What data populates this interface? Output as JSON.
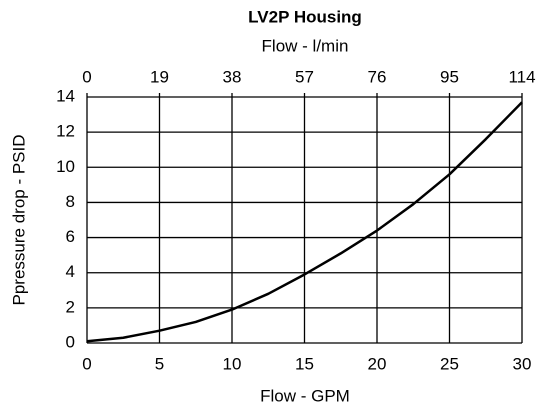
{
  "chart_data": {
    "type": "line",
    "title": "LV2P Housing",
    "x2label": "Flow - l/min",
    "xlabel": "Flow - GPM",
    "ylabel": "Ppressure drop - PSID",
    "x": [
      0,
      2.5,
      5,
      7.5,
      10,
      12.5,
      15,
      17.5,
      20,
      22.5,
      25,
      27.5,
      30
    ],
    "series": [
      {
        "color": "#000000",
        "values": [
          0.1,
          0.3,
          0.7,
          1.2,
          1.9,
          2.8,
          3.9,
          5.1,
          6.4,
          7.9,
          9.6,
          11.6,
          13.7
        ]
      }
    ],
    "xlim": [
      0,
      30
    ],
    "xticks": [
      0,
      5,
      10,
      15,
      20,
      25,
      30
    ],
    "x2lim": [
      0,
      114
    ],
    "x2ticks": [
      0,
      19,
      38,
      57,
      76,
      95,
      114
    ],
    "ylim": [
      0,
      14
    ],
    "yticks": [
      0,
      2,
      4,
      6,
      8,
      10,
      12,
      14
    ],
    "grid": true
  }
}
